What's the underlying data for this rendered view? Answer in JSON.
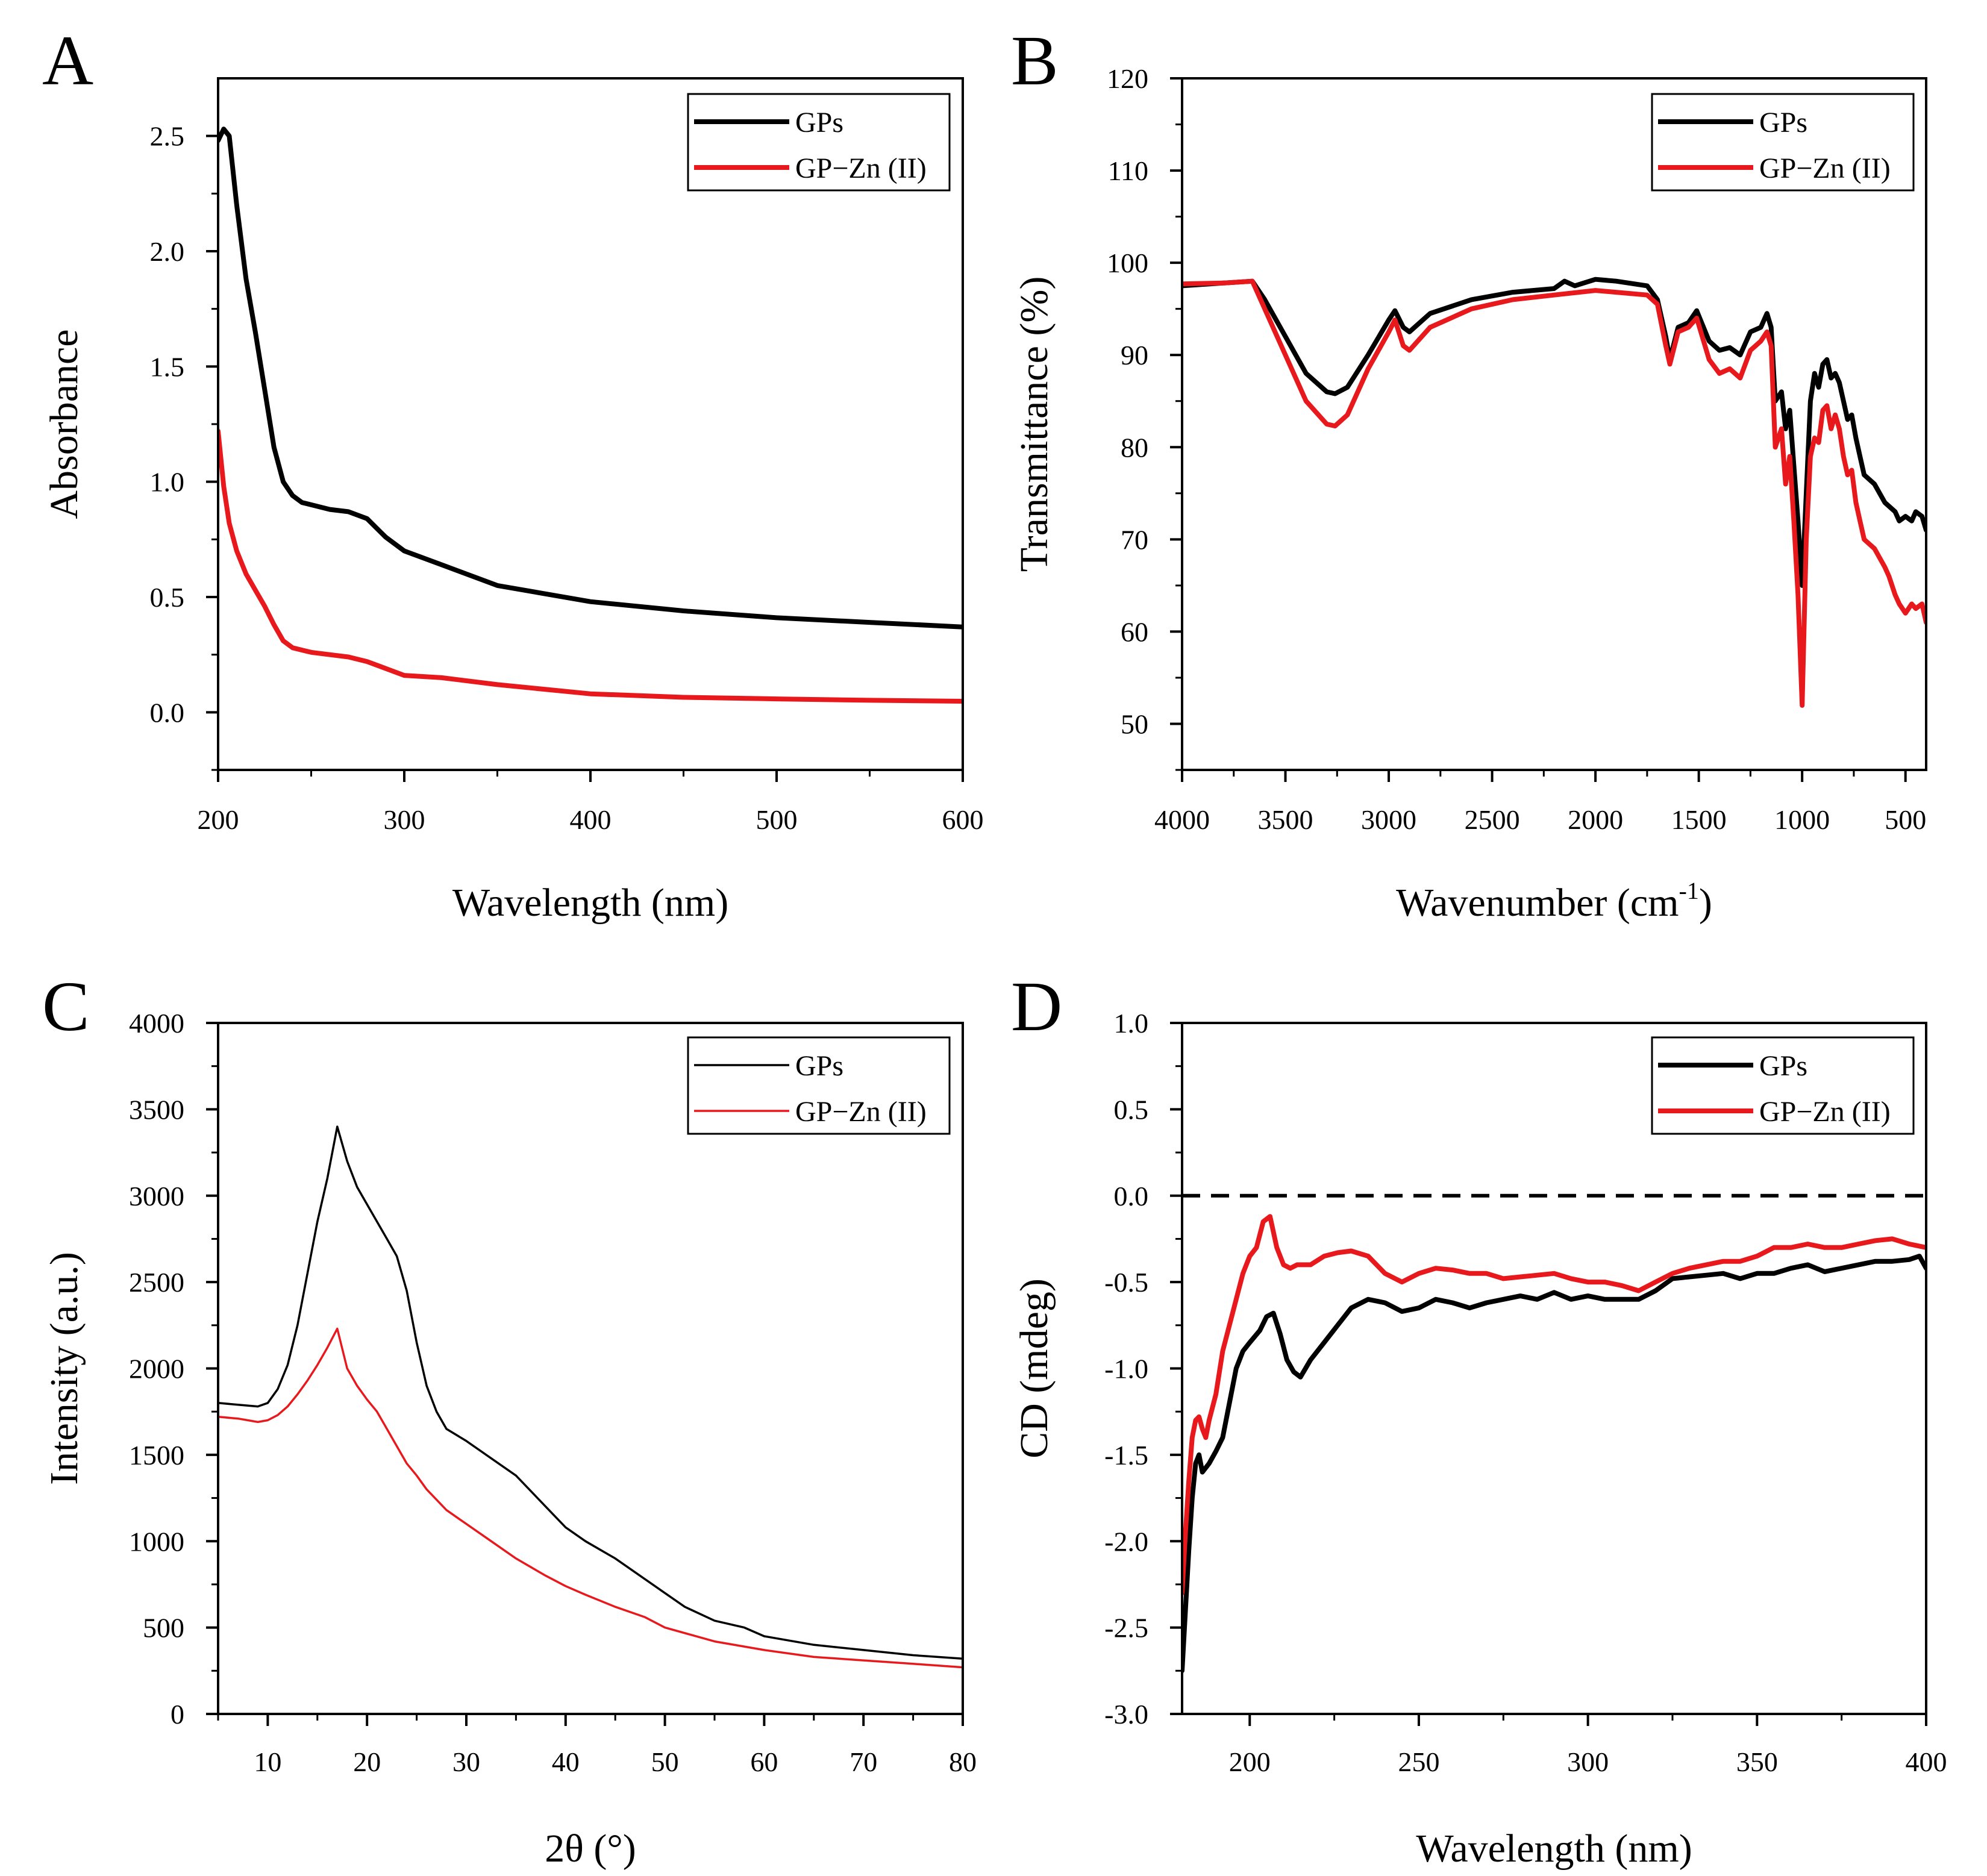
{
  "colors": {
    "gps": "#000000",
    "gpzn": "#e8191c",
    "axis": "#000000",
    "background": "#ffffff"
  },
  "chart_data": [
    {
      "panel": "A",
      "type": "line",
      "xlabel": "Wavelength (nm)",
      "ylabel": "Absorbance",
      "xlim": [
        200,
        600
      ],
      "ylim": [
        -0.25,
        2.75
      ],
      "xticks": [
        200,
        300,
        400,
        500,
        600
      ],
      "xtick_labels": [
        "200",
        "300",
        "400",
        "500",
        "600"
      ],
      "yticks": [
        0.0,
        0.5,
        1.0,
        1.5,
        2.0,
        2.5
      ],
      "ytick_labels": [
        "0.0",
        "0.5",
        "1.0",
        "1.5",
        "2.0",
        "2.5"
      ],
      "legend": {
        "position": "top-right",
        "entries": [
          "GPs",
          "GP−Zn (II)"
        ]
      },
      "series": [
        {
          "name": "GPs",
          "color": "#000000",
          "x": [
            200,
            203,
            206,
            210,
            215,
            220,
            225,
            230,
            235,
            240,
            245,
            250,
            260,
            270,
            280,
            285,
            290,
            300,
            320,
            350,
            400,
            450,
            500,
            550,
            600
          ],
          "y": [
            2.48,
            2.53,
            2.5,
            2.2,
            1.88,
            1.65,
            1.4,
            1.15,
            1.0,
            0.94,
            0.91,
            0.9,
            0.88,
            0.87,
            0.84,
            0.8,
            0.76,
            0.7,
            0.64,
            0.55,
            0.48,
            0.44,
            0.41,
            0.39,
            0.37
          ]
        },
        {
          "name": "GP−Zn (II)",
          "color": "#e8191c",
          "x": [
            200,
            203,
            206,
            210,
            215,
            220,
            225,
            230,
            235,
            240,
            250,
            260,
            270,
            280,
            290,
            300,
            320,
            350,
            400,
            450,
            500,
            550,
            600
          ],
          "y": [
            1.22,
            0.98,
            0.82,
            0.7,
            0.6,
            0.53,
            0.46,
            0.38,
            0.31,
            0.28,
            0.26,
            0.25,
            0.24,
            0.22,
            0.19,
            0.16,
            0.15,
            0.12,
            0.08,
            0.065,
            0.058,
            0.052,
            0.048
          ]
        }
      ]
    },
    {
      "panel": "B",
      "type": "line",
      "xlabel": "Wavenumber (cm",
      "xlabel_sup": "-1",
      "xlabel_end": ")",
      "ylabel": "Transmittance (%)",
      "xlim": [
        4000,
        400
      ],
      "ylim": [
        45,
        120
      ],
      "xticks": [
        4000,
        3500,
        3000,
        2500,
        2000,
        1500,
        1000,
        500
      ],
      "xtick_labels": [
        "4000",
        "3500",
        "3000",
        "2500",
        "2000",
        "1500",
        "1000",
        "500"
      ],
      "yticks": [
        50,
        60,
        70,
        80,
        90,
        100,
        110,
        120
      ],
      "ytick_labels": [
        "50",
        "60",
        "70",
        "80",
        "90",
        "100",
        "110",
        "120"
      ],
      "legend": {
        "position": "top-right",
        "entries": [
          "GPs",
          "GP−Zn (II)"
        ]
      },
      "series": [
        {
          "name": "GPs",
          "color": "#000000",
          "x": [
            4000,
            3800,
            3660,
            3600,
            3500,
            3400,
            3300,
            3260,
            3200,
            3100,
            3000,
            2970,
            2930,
            2900,
            2800,
            2600,
            2400,
            2200,
            2150,
            2100,
            2000,
            1900,
            1750,
            1700,
            1660,
            1640,
            1600,
            1550,
            1510,
            1450,
            1400,
            1350,
            1300,
            1250,
            1200,
            1170,
            1150,
            1130,
            1100,
            1080,
            1060,
            1040,
            1020,
            1000,
            980,
            960,
            940,
            920,
            900,
            880,
            860,
            840,
            820,
            800,
            780,
            760,
            740,
            720,
            700,
            650,
            600,
            550,
            530,
            500,
            470,
            450,
            420,
            400
          ],
          "y": [
            97.5,
            97.8,
            98.0,
            96.0,
            92.0,
            88.0,
            86.0,
            85.8,
            86.5,
            90.0,
            93.8,
            94.8,
            93.0,
            92.5,
            94.5,
            96.0,
            96.8,
            97.2,
            98.0,
            97.5,
            98.2,
            98.0,
            97.5,
            96.0,
            92.0,
            89.5,
            93.0,
            93.5,
            94.8,
            91.5,
            90.5,
            90.8,
            90.0,
            92.5,
            93.0,
            94.5,
            93.0,
            85.0,
            86.0,
            82.0,
            84.0,
            78.0,
            72.0,
            65.0,
            75.0,
            85.0,
            88.0,
            86.5,
            89.0,
            89.5,
            87.5,
            88.0,
            87.0,
            85.0,
            83.0,
            83.5,
            81.0,
            79.0,
            77.0,
            76.0,
            74.0,
            73.0,
            72.0,
            72.5,
            72.0,
            73.0,
            72.5,
            71.0
          ]
        },
        {
          "name": "GP−Zn (II)",
          "color": "#e8191c",
          "x": [
            4000,
            3800,
            3660,
            3600,
            3500,
            3400,
            3300,
            3260,
            3200,
            3100,
            3000,
            2970,
            2930,
            2900,
            2800,
            2600,
            2400,
            2200,
            2000,
            1900,
            1750,
            1700,
            1660,
            1640,
            1600,
            1550,
            1510,
            1450,
            1400,
            1350,
            1300,
            1250,
            1200,
            1170,
            1150,
            1130,
            1100,
            1080,
            1060,
            1040,
            1020,
            1000,
            980,
            960,
            940,
            920,
            900,
            880,
            860,
            840,
            820,
            800,
            780,
            760,
            740,
            720,
            700,
            650,
            600,
            580,
            550,
            530,
            500,
            470,
            450,
            420,
            400
          ],
          "y": [
            97.7,
            97.8,
            98.0,
            95.0,
            90.0,
            85.0,
            82.5,
            82.3,
            83.5,
            88.5,
            92.5,
            93.8,
            91.0,
            90.5,
            93.0,
            95.0,
            96.0,
            96.5,
            97.0,
            96.8,
            96.5,
            95.5,
            91.0,
            89.0,
            92.5,
            93.0,
            94.0,
            89.5,
            88.0,
            88.5,
            87.5,
            90.5,
            91.5,
            92.5,
            91.0,
            80.0,
            82.0,
            76.0,
            79.0,
            72.0,
            64.0,
            52.0,
            70.0,
            79.0,
            81.0,
            80.5,
            84.0,
            84.5,
            82.0,
            83.5,
            82.0,
            79.0,
            77.0,
            77.5,
            74.0,
            72.0,
            70.0,
            69.0,
            67.0,
            66.0,
            64.0,
            63.0,
            62.0,
            63.0,
            62.5,
            63.0,
            61.0
          ]
        }
      ]
    },
    {
      "panel": "C",
      "type": "line",
      "xlabel": "2θ (°)",
      "ylabel": "Intensity (a.u.)",
      "xlim": [
        5,
        80
      ],
      "ylim": [
        0,
        4000
      ],
      "xticks": [
        10,
        20,
        30,
        40,
        50,
        60,
        70,
        80
      ],
      "xtick_labels": [
        "10",
        "20",
        "30",
        "40",
        "50",
        "60",
        "70",
        "80"
      ],
      "yticks": [
        0,
        500,
        1000,
        1500,
        2000,
        2500,
        3000,
        3500,
        4000
      ],
      "ytick_labels": [
        "0",
        "500",
        "1000",
        "1500",
        "2000",
        "2500",
        "3000",
        "3500",
        "4000"
      ],
      "legend": {
        "position": "top-right",
        "entries": [
          "GPs",
          "GP−Zn (II)"
        ]
      },
      "series": [
        {
          "name": "GPs",
          "color": "#000000",
          "x": [
            5,
            7,
            9,
            10,
            11,
            12,
            13,
            14,
            15,
            16,
            17,
            18,
            19,
            20,
            21,
            22,
            23,
            24,
            25,
            26,
            27,
            28,
            30,
            32,
            35,
            38,
            40,
            42,
            45,
            48,
            50,
            52,
            55,
            58,
            60,
            65,
            70,
            75,
            80
          ],
          "y": [
            1800,
            1790,
            1780,
            1800,
            1880,
            2020,
            2250,
            2550,
            2850,
            3100,
            3400,
            3200,
            3050,
            2950,
            2850,
            2750,
            2650,
            2450,
            2150,
            1900,
            1750,
            1650,
            1580,
            1500,
            1380,
            1200,
            1080,
            1000,
            900,
            780,
            700,
            620,
            540,
            500,
            450,
            400,
            370,
            340,
            320
          ]
        },
        {
          "name": "GP−Zn (II)",
          "color": "#e8191c",
          "x": [
            5,
            7,
            9,
            10,
            11,
            12,
            13,
            14,
            15,
            16,
            17,
            18,
            19,
            20,
            21,
            22,
            23,
            24,
            25,
            26,
            28,
            30,
            32,
            35,
            38,
            40,
            42,
            45,
            48,
            50,
            55,
            60,
            65,
            70,
            75,
            80
          ],
          "y": [
            1720,
            1710,
            1690,
            1700,
            1730,
            1780,
            1850,
            1930,
            2020,
            2120,
            2230,
            2000,
            1900,
            1820,
            1750,
            1650,
            1550,
            1450,
            1380,
            1300,
            1180,
            1100,
            1020,
            900,
            800,
            740,
            690,
            620,
            560,
            500,
            420,
            370,
            330,
            310,
            290,
            270
          ]
        }
      ]
    },
    {
      "panel": "D",
      "type": "line",
      "xlabel": "Wavelength (nm)",
      "ylabel": "CD (mdeg)",
      "xlim": [
        180,
        400
      ],
      "ylim": [
        -3.0,
        1.0
      ],
      "xticks": [
        200,
        250,
        300,
        350,
        400
      ],
      "xtick_labels": [
        "200",
        "250",
        "300",
        "350",
        "400"
      ],
      "yticks": [
        -3.0,
        -2.5,
        -2.0,
        -1.5,
        -1.0,
        -0.5,
        0.0,
        0.5,
        1.0
      ],
      "ytick_labels": [
        "-3.0",
        "-2.5",
        "-2.0",
        "-1.5",
        "-1.0",
        "-0.5",
        "0.0",
        "0.5",
        "1.0"
      ],
      "reference_line": 0.0,
      "legend": {
        "position": "top-right",
        "entries": [
          "GPs",
          "GP−Zn (II)"
        ]
      },
      "series": [
        {
          "name": "GPs",
          "color": "#000000",
          "x": [
            180,
            181,
            182,
            183,
            184,
            185,
            186,
            188,
            190,
            192,
            194,
            196,
            198,
            200,
            203,
            205,
            207,
            209,
            211,
            213,
            215,
            218,
            222,
            226,
            230,
            235,
            240,
            245,
            250,
            255,
            260,
            265,
            270,
            275,
            280,
            285,
            290,
            295,
            300,
            305,
            310,
            315,
            320,
            325,
            330,
            335,
            340,
            345,
            350,
            355,
            360,
            365,
            370,
            375,
            380,
            385,
            390,
            395,
            398,
            400
          ],
          "y": [
            -2.75,
            -2.4,
            -2.05,
            -1.75,
            -1.55,
            -1.5,
            -1.6,
            -1.55,
            -1.48,
            -1.4,
            -1.2,
            -1.0,
            -0.9,
            -0.85,
            -0.78,
            -0.7,
            -0.68,
            -0.8,
            -0.95,
            -1.02,
            -1.05,
            -0.95,
            -0.85,
            -0.75,
            -0.65,
            -0.6,
            -0.62,
            -0.67,
            -0.65,
            -0.6,
            -0.62,
            -0.65,
            -0.62,
            -0.6,
            -0.58,
            -0.6,
            -0.56,
            -0.6,
            -0.58,
            -0.6,
            -0.6,
            -0.6,
            -0.55,
            -0.48,
            -0.47,
            -0.46,
            -0.45,
            -0.48,
            -0.45,
            -0.45,
            -0.42,
            -0.4,
            -0.44,
            -0.42,
            -0.4,
            -0.38,
            -0.38,
            -0.37,
            -0.35,
            -0.42
          ]
        },
        {
          "name": "GP−Zn (II)",
          "color": "#e8191c",
          "x": [
            180,
            181,
            182,
            183,
            184,
            185,
            186,
            187,
            188,
            190,
            192,
            194,
            196,
            198,
            200,
            202,
            204,
            206,
            208,
            210,
            212,
            214,
            218,
            222,
            226,
            230,
            235,
            240,
            245,
            250,
            255,
            260,
            265,
            270,
            275,
            280,
            285,
            290,
            295,
            300,
            305,
            310,
            315,
            320,
            325,
            330,
            335,
            340,
            345,
            350,
            355,
            360,
            365,
            370,
            375,
            380,
            385,
            390,
            395,
            400
          ],
          "y": [
            -2.3,
            -1.95,
            -1.65,
            -1.4,
            -1.3,
            -1.28,
            -1.35,
            -1.4,
            -1.3,
            -1.15,
            -0.9,
            -0.75,
            -0.6,
            -0.45,
            -0.35,
            -0.3,
            -0.15,
            -0.12,
            -0.3,
            -0.4,
            -0.42,
            -0.4,
            -0.4,
            -0.35,
            -0.33,
            -0.32,
            -0.35,
            -0.45,
            -0.5,
            -0.45,
            -0.42,
            -0.43,
            -0.45,
            -0.45,
            -0.48,
            -0.47,
            -0.46,
            -0.45,
            -0.48,
            -0.5,
            -0.5,
            -0.52,
            -0.55,
            -0.5,
            -0.45,
            -0.42,
            -0.4,
            -0.38,
            -0.38,
            -0.35,
            -0.3,
            -0.3,
            -0.28,
            -0.3,
            -0.3,
            -0.28,
            -0.26,
            -0.25,
            -0.28,
            -0.3
          ]
        }
      ]
    }
  ]
}
